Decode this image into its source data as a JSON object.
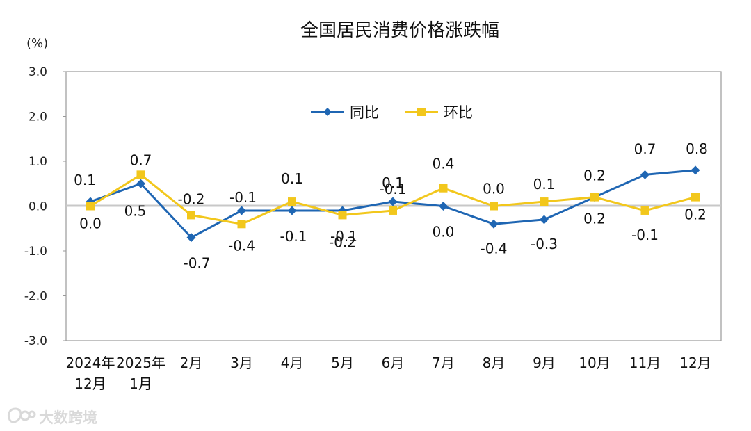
{
  "chart_data": {
    "type": "line",
    "title": "全国居民消费价格涨跌幅",
    "unit_label": "(%)",
    "categories": [
      [
        "2024年",
        "12月"
      ],
      [
        "2025年",
        "1月"
      ],
      [
        "2月"
      ],
      [
        "3月"
      ],
      [
        "4月"
      ],
      [
        "5月"
      ],
      [
        "6月"
      ],
      [
        "7月"
      ],
      [
        "8月"
      ],
      [
        "9月"
      ],
      [
        "10月"
      ],
      [
        "11月"
      ],
      [
        "12月"
      ]
    ],
    "ylim": [
      -3.0,
      3.0
    ],
    "yticks": [
      "3.0",
      "2.0",
      "1.0",
      "0.0",
      "-1.0",
      "-2.0",
      "-3.0"
    ],
    "ytick_values": [
      3.0,
      2.0,
      1.0,
      0.0,
      -1.0,
      -2.0,
      -3.0
    ],
    "grid": false,
    "legend_position": "top-center",
    "series": [
      {
        "name": "同比",
        "color": "#1f66b3",
        "marker": "diamond",
        "values": [
          0.1,
          0.5,
          -0.7,
          -0.1,
          -0.1,
          -0.1,
          0.1,
          0.0,
          -0.4,
          -0.3,
          0.2,
          0.7,
          0.8
        ],
        "labels": [
          "0.1",
          "0.5",
          "-0.7",
          "-0.1",
          "-0.1",
          "-0.1",
          "0.1",
          "0.0",
          "-0.4",
          "-0.3",
          "0.2",
          "0.7",
          "0.8"
        ]
      },
      {
        "name": "环比",
        "color": "#f2c71c",
        "marker": "square",
        "values": [
          0.0,
          0.7,
          -0.2,
          -0.4,
          0.1,
          -0.2,
          -0.1,
          0.4,
          0.0,
          0.1,
          0.2,
          -0.1,
          0.2
        ],
        "labels": [
          "0.0",
          "0.7",
          "-0.2",
          "-0.4",
          "0.1",
          "-0.2",
          "-0.1",
          "0.4",
          "0.0",
          "0.1",
          "0.2",
          "-0.1",
          "0.2"
        ]
      }
    ]
  },
  "watermark": {
    "text": "大数跨境",
    "icon": "brand-logo-icon"
  }
}
